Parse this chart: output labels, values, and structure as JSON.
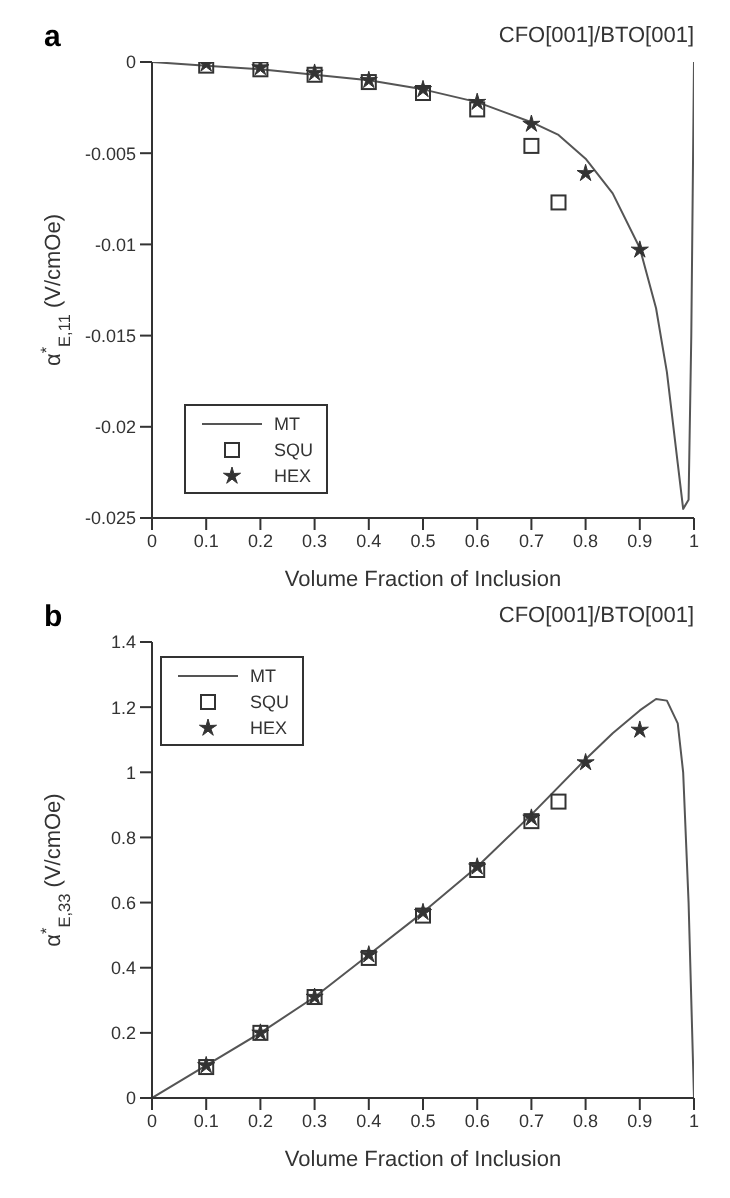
{
  "chart_data": [
    {
      "type": "line",
      "title": "CFO[001]/BTO[001]",
      "xlabel": "Volume Fraction of Inclusion",
      "ylabel": "α$^{*}$$_{E,11}$ (V/cmOe)",
      "annotations": [
        "a"
      ],
      "xlim": [
        0,
        1
      ],
      "xticks": [
        0,
        0.1,
        0.2,
        0.3,
        0.4,
        0.5,
        0.6,
        0.7,
        0.8,
        0.9,
        1
      ],
      "ylim": [
        -0.025,
        0
      ],
      "yticks": [
        -0.025,
        -0.02,
        -0.015,
        -0.01,
        -0.005,
        0
      ],
      "grid": false,
      "legend": "bottom left",
      "series": [
        {
          "name": "MT",
          "marker": "none",
          "color": "#555555",
          "x": [
            0,
            0.1,
            0.2,
            0.3,
            0.4,
            0.5,
            0.6,
            0.7,
            0.75,
            0.8,
            0.85,
            0.9,
            0.93,
            0.95,
            0.97,
            0.98,
            0.99,
            0.995,
            1
          ],
          "values": [
            0,
            -0.0002,
            -0.0004,
            -0.0007,
            -0.001,
            -0.0015,
            -0.0022,
            -0.0033,
            -0.004,
            -0.0053,
            -0.0072,
            -0.0102,
            -0.0135,
            -0.017,
            -0.022,
            -0.0245,
            -0.024,
            -0.015,
            0
          ]
        },
        {
          "name": "SQU",
          "type": "scatter",
          "marker": "square",
          "color": "#333333",
          "x": [
            0.1,
            0.2,
            0.3,
            0.4,
            0.5,
            0.6,
            0.7,
            0.75
          ],
          "values": [
            -0.0002,
            -0.0004,
            -0.0007,
            -0.0011,
            -0.0017,
            -0.0026,
            -0.0046,
            -0.0077
          ]
        },
        {
          "name": "HEX",
          "type": "scatter",
          "marker": "star",
          "color": "#333333",
          "x": [
            0.1,
            0.2,
            0.3,
            0.4,
            0.5,
            0.6,
            0.7,
            0.8,
            0.9
          ],
          "values": [
            -0.0001,
            -0.0003,
            -0.0006,
            -0.001,
            -0.0015,
            -0.0022,
            -0.0034,
            -0.0061,
            -0.0103
          ]
        }
      ]
    },
    {
      "type": "line",
      "title": "CFO[001]/BTO[001]",
      "xlabel": "Volume Fraction of Inclusion",
      "ylabel": "α$^{*}$$_{E,33}$ (V/cmOe)",
      "annotations": [
        "b"
      ],
      "xlim": [
        0,
        1
      ],
      "xticks": [
        0,
        0.1,
        0.2,
        0.3,
        0.4,
        0.5,
        0.6,
        0.7,
        0.8,
        0.9,
        1
      ],
      "ylim": [
        0,
        1.4
      ],
      "yticks": [
        0,
        0.2,
        0.4,
        0.6,
        0.8,
        1,
        1.2,
        1.4
      ],
      "grid": false,
      "legend": "top left",
      "series": [
        {
          "name": "MT",
          "marker": "none",
          "color": "#555555",
          "x": [
            0,
            0.1,
            0.2,
            0.3,
            0.4,
            0.5,
            0.6,
            0.7,
            0.8,
            0.85,
            0.9,
            0.93,
            0.95,
            0.97,
            0.98,
            0.99,
            1
          ],
          "values": [
            0,
            0.1,
            0.2,
            0.31,
            0.44,
            0.57,
            0.71,
            0.87,
            1.04,
            1.12,
            1.19,
            1.225,
            1.22,
            1.15,
            1.0,
            0.6,
            0
          ]
        },
        {
          "name": "SQU",
          "type": "scatter",
          "marker": "square",
          "color": "#333333",
          "x": [
            0.1,
            0.2,
            0.3,
            0.4,
            0.5,
            0.6,
            0.7,
            0.75
          ],
          "values": [
            0.095,
            0.2,
            0.31,
            0.43,
            0.56,
            0.7,
            0.85,
            0.91
          ]
        },
        {
          "name": "HEX",
          "type": "scatter",
          "marker": "star",
          "color": "#333333",
          "x": [
            0.1,
            0.2,
            0.3,
            0.4,
            0.5,
            0.6,
            0.7,
            0.8,
            0.9
          ],
          "values": [
            0.1,
            0.2,
            0.31,
            0.44,
            0.57,
            0.71,
            0.86,
            1.03,
            1.13
          ]
        }
      ]
    }
  ]
}
